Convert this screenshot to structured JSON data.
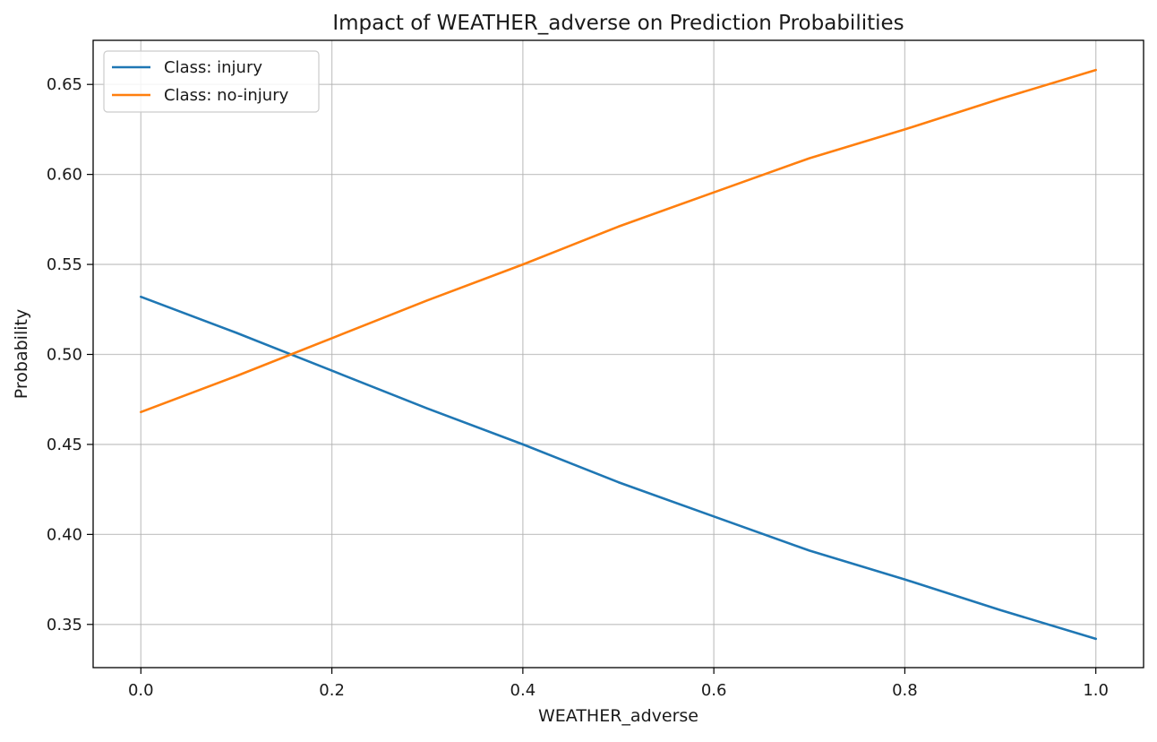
{
  "chart_data": {
    "type": "line",
    "title": "Impact of WEATHER_adverse on Prediction Probabilities",
    "xlabel": "WEATHER_adverse",
    "ylabel": "Probability",
    "xlim": [
      -0.05,
      1.05
    ],
    "ylim": [
      0.326,
      0.6745
    ],
    "xticks": [
      0.0,
      0.2,
      0.4,
      0.6,
      0.8,
      1.0
    ],
    "xtick_labels": [
      "0.0",
      "0.2",
      "0.4",
      "0.6",
      "0.8",
      "1.0"
    ],
    "yticks": [
      0.35,
      0.4,
      0.45,
      0.5,
      0.55,
      0.6,
      0.65
    ],
    "ytick_labels": [
      "0.35",
      "0.40",
      "0.45",
      "0.50",
      "0.55",
      "0.60",
      "0.65"
    ],
    "grid": true,
    "legend_position": "upper-left",
    "x": [
      0.0,
      0.1,
      0.2,
      0.3,
      0.4,
      0.5,
      0.6,
      0.7,
      0.8,
      0.9,
      1.0
    ],
    "series": [
      {
        "name": "Class: injury",
        "color": "#1f77b4",
        "values": [
          0.532,
          0.512,
          0.491,
          0.47,
          0.45,
          0.429,
          0.41,
          0.391,
          0.375,
          0.358,
          0.342
        ]
      },
      {
        "name": "Class: no-injury",
        "color": "#ff7f0e",
        "values": [
          0.468,
          0.488,
          0.509,
          0.53,
          0.55,
          0.571,
          0.59,
          0.609,
          0.625,
          0.642,
          0.658
        ]
      }
    ]
  }
}
